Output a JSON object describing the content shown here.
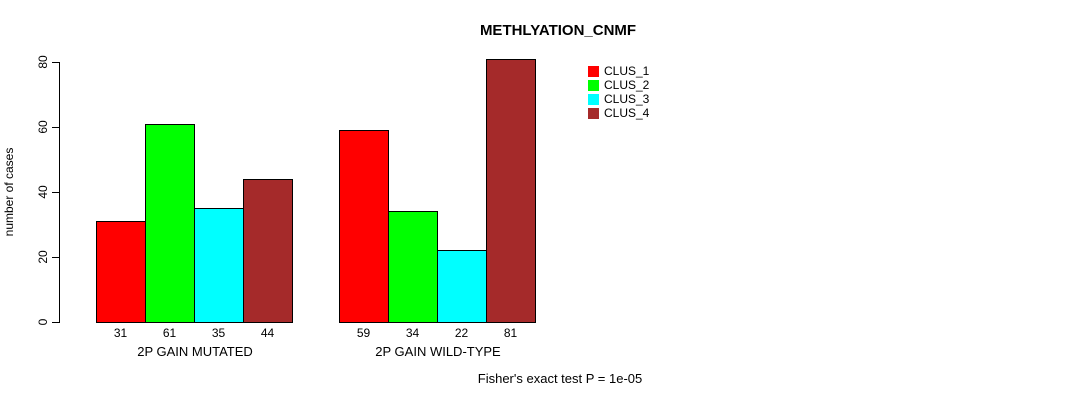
{
  "title": "METHLYATION_CNMF",
  "footer": "Fisher's exact test P = 1e-05",
  "y_axis": {
    "label": "number of cases"
  },
  "chart_data": {
    "type": "bar",
    "title": "METHLYATION_CNMF",
    "xlabel": "",
    "ylabel": "number of cases",
    "ylim": [
      0,
      80
    ],
    "yticks": [
      0,
      20,
      40,
      60,
      80
    ],
    "grid": false,
    "legend_position": "top-right",
    "categories": [
      "2P GAIN MUTATED",
      "2P GAIN WILD-TYPE"
    ],
    "series": [
      {
        "name": "CLUS_1",
        "color": "#FF0000",
        "values": [
          31,
          59
        ]
      },
      {
        "name": "CLUS_2",
        "color": "#00FF00",
        "values": [
          61,
          34
        ]
      },
      {
        "name": "CLUS_3",
        "color": "#00FFFF",
        "values": [
          35,
          22
        ]
      },
      {
        "name": "CLUS_4",
        "color": "#A52A2A",
        "values": [
          44,
          81
        ]
      }
    ],
    "bar_value_labels": [
      [
        31,
        61,
        35,
        44
      ],
      [
        59,
        34,
        22,
        81
      ]
    ],
    "annotation": "Fisher's exact test P = 1e-05"
  }
}
